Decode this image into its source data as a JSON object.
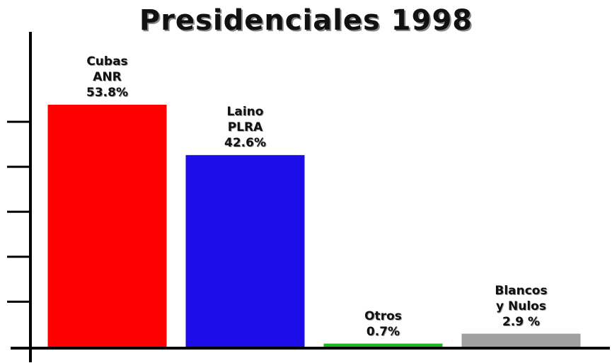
{
  "chart_data": {
    "type": "bar",
    "title": "Presidenciales 1998",
    "categories": [
      "Cubas\nANR",
      "Laino\nPLRA",
      "Otros",
      "Blancos\ny Nulos"
    ],
    "values": [
      53.8,
      42.6,
      0.7,
      2.9
    ],
    "value_labels": [
      "53.8%",
      "42.6%",
      "0.7%",
      "2.9 %"
    ],
    "colors": [
      "#ff0000",
      "#1c0de8",
      "#1fb81f",
      "#a0a0a0"
    ],
    "ylim": [
      0,
      70
    ],
    "yticks": [
      10,
      20,
      30,
      40,
      50
    ]
  }
}
